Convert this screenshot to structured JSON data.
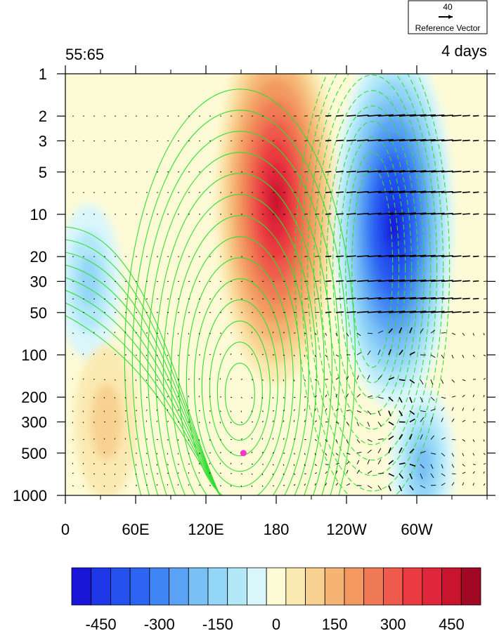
{
  "header": {
    "left_title": "55:65",
    "right_title": "4 days"
  },
  "reference_vector": {
    "magnitude": "40",
    "label": "Reference Vector"
  },
  "chart_data": {
    "type": "heatmap",
    "title": "",
    "xlabel": "",
    "ylabel": "",
    "x_ticks": [
      "0",
      "60E",
      "120E",
      "180",
      "120W",
      "60W"
    ],
    "x_tick_values_deg": [
      0,
      60,
      120,
      180,
      240,
      300
    ],
    "x_range_deg": [
      0,
      360
    ],
    "y_ticks": [
      "1",
      "2",
      "3",
      "5",
      "10",
      "20",
      "30",
      "50",
      "100",
      "200",
      "300",
      "500",
      "1000"
    ],
    "y_tick_values_hpa": [
      1,
      2,
      3,
      5,
      10,
      20,
      30,
      50,
      100,
      200,
      300,
      500,
      1000
    ],
    "y_range_hpa": [
      1,
      1000
    ],
    "y_scale": "log",
    "y_inverted": true,
    "colorbar": {
      "tick_labels": [
        "-450",
        "-300",
        "-150",
        "0",
        "150",
        "300",
        "450"
      ],
      "tick_values": [
        -450,
        -300,
        -150,
        0,
        150,
        300,
        450
      ],
      "levels": [
        -525,
        -475,
        -425,
        -375,
        -325,
        -275,
        -225,
        -175,
        -125,
        -75,
        -25,
        25,
        75,
        125,
        175,
        225,
        275,
        325,
        375,
        425,
        475,
        525
      ],
      "colors": [
        "#1a16d8",
        "#1e38e8",
        "#2451ee",
        "#2e64f2",
        "#3f86f4",
        "#5aa3f4",
        "#79c0f5",
        "#93d6f7",
        "#b3e8f9",
        "#d9f6fb",
        "#fdfbd6",
        "#fbe9b2",
        "#f8d190",
        "#f5b474",
        "#f29860",
        "#f07a55",
        "#ee5a4c",
        "#ea3b40",
        "#e0263a",
        "#c8142e",
        "#a10823"
      ]
    },
    "anomaly_centers": [
      {
        "lon": 180,
        "p": 8,
        "value": 480
      },
      {
        "lon": 280,
        "p": 12,
        "value": -500
      },
      {
        "lon": 20,
        "p": 30,
        "value": -150
      },
      {
        "lon": 35,
        "p": 300,
        "value": 120
      },
      {
        "lon": 305,
        "p": 600,
        "value": -200
      }
    ],
    "marker": {
      "lon": 152,
      "p": 500,
      "color": "#ff33cc"
    },
    "contour_color": "#33dd33",
    "vector_color": "#000000"
  }
}
